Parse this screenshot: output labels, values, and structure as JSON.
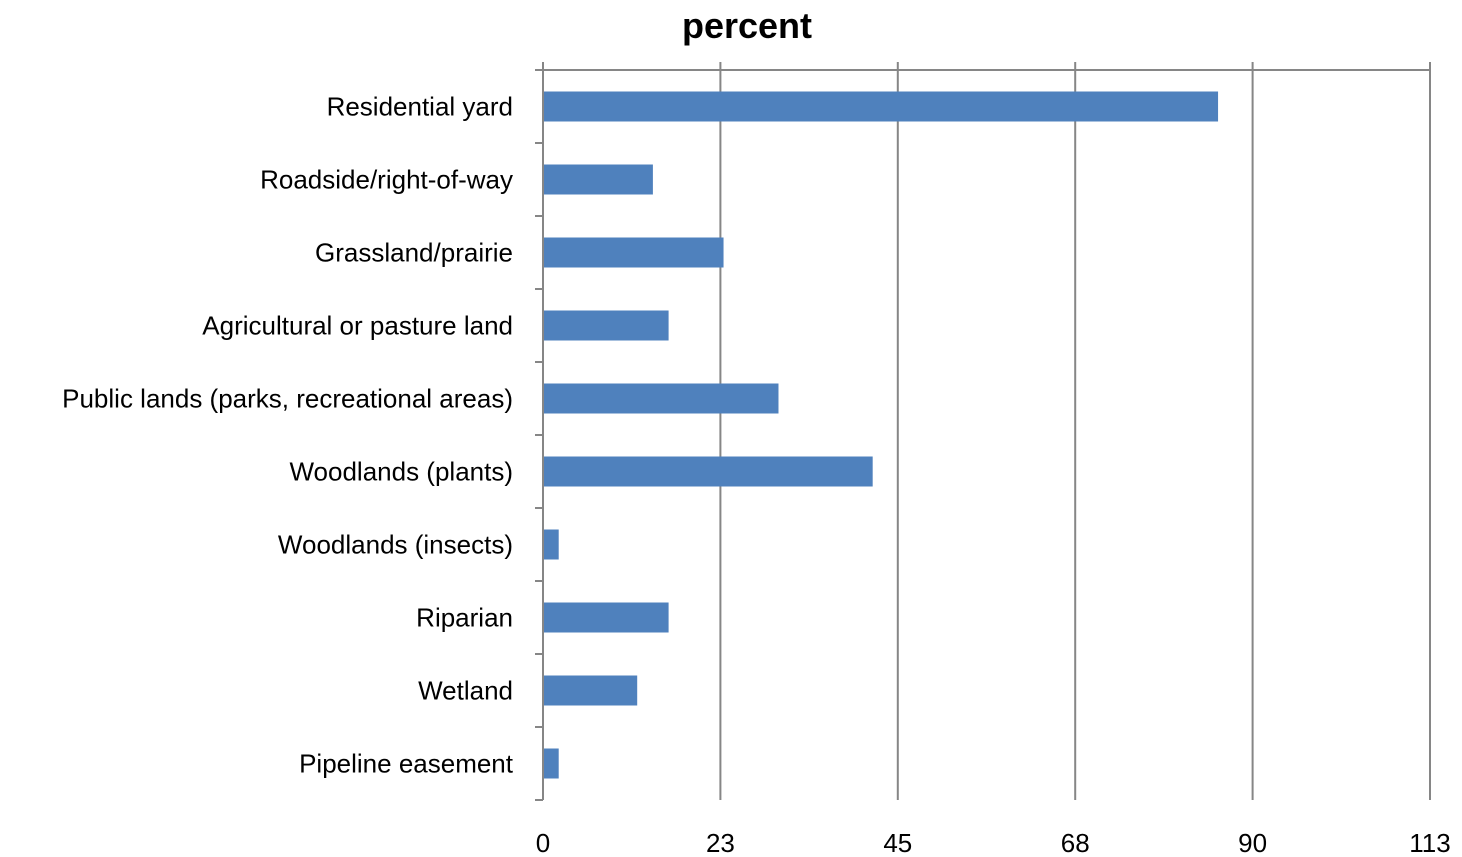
{
  "chart_data": {
    "type": "bar",
    "orientation": "horizontal",
    "title": "percent",
    "categories": [
      "Residential yard",
      "Roadside/right-of-way",
      "Grassland/prairie",
      "Agricultural or pasture land",
      "Public lands (parks, recreational areas)",
      "Woodlands (plants)",
      "Woodlands (insects)",
      "Riparian",
      "Wetland",
      "Pipeline easement"
    ],
    "values": [
      86,
      14,
      23,
      16,
      30,
      42,
      2,
      16,
      12,
      2
    ],
    "xlim": [
      0,
      113
    ],
    "xticks": [
      "0",
      "23",
      "45",
      "68",
      "90",
      "113"
    ],
    "xtick_values": [
      0,
      22.6,
      45.2,
      67.8,
      90.4,
      113
    ],
    "grid": "vertical",
    "legend": "none",
    "bar_color": "#4F81BD",
    "grid_color": "#868686"
  }
}
